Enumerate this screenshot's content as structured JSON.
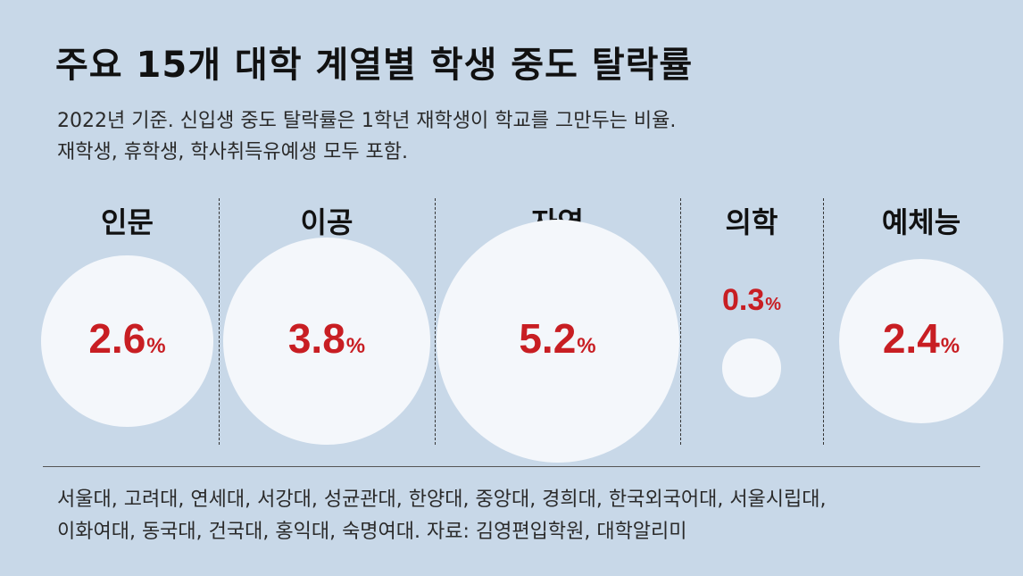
{
  "title": "주요 15개 대학 계열별 학생 중도 탈락률",
  "subtitle": {
    "line1": "2022년 기준. 신입생 중도 탈락률은 1학년 재학생이 학교를 그만두는 비율.",
    "line2": "재학생, 휴학생, 학사취득유예생 모두 포함."
  },
  "colors": {
    "background": "#c8d8e8",
    "bubble": "#f4f7fb",
    "value": "#c81e23"
  },
  "chart_data": {
    "type": "bubble",
    "title": "주요 15개 대학 계열별 학생 중도 탈락률",
    "unit": "%",
    "categories": [
      "인문",
      "이공",
      "자연",
      "의학",
      "예체능"
    ],
    "values": [
      2.6,
      3.8,
      5.2,
      0.3,
      2.4
    ],
    "value_labels": [
      "2.6",
      "3.8",
      "5.2",
      "0.3",
      "2.4"
    ],
    "pct_symbol": "%"
  },
  "footer": {
    "line1": "서울대, 고려대, 연세대, 서강대, 성균관대, 한양대, 중앙대, 경희대, 한국외국어대, 서울시립대,",
    "line2": "이화여대, 동국대, 건국대, 홍익대, 숙명여대. 자료: 김영편입학원, 대학알리미"
  }
}
